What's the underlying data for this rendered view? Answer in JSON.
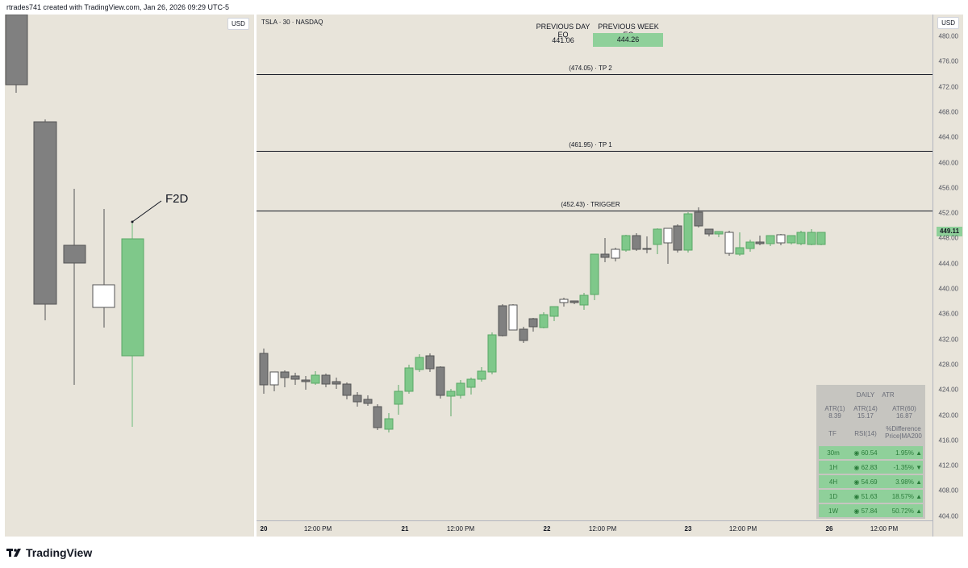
{
  "header": {
    "caption": "rtrades741 created with TradingView.com, Jan 26, 2026 09:29 UTC-5"
  },
  "left_chart": {
    "currency": "USD",
    "annotation": "F2D"
  },
  "right_chart": {
    "currency": "USD",
    "symbol_line": "TSLA · 30 · NASDAQ",
    "prev_day_eq_label": "PREVIOUS DAY EQ",
    "prev_day_eq_value": "441.06",
    "prev_week_eq_label": "PREVIOUS WEEK EQ",
    "prev_week_eq_value": "444.26",
    "levels": [
      {
        "label": "(474.05) · TP 2",
        "price": 474.05
      },
      {
        "label": "(461.95) · TP 1",
        "price": 461.95
      },
      {
        "label": "(452.43) · TRIGGER",
        "price": 452.43
      }
    ],
    "current_price": "449.11",
    "price_ticks": [
      "480.00",
      "476.00",
      "472.00",
      "468.00",
      "464.00",
      "460.00",
      "456.00",
      "452.00",
      "448.00",
      "444.00",
      "440.00",
      "436.00",
      "432.00",
      "428.00",
      "424.00",
      "420.00",
      "416.00",
      "412.00",
      "408.00",
      "404.00"
    ],
    "time_ticks": [
      {
        "label": "20",
        "bold": true
      },
      {
        "label": "12:00 PM",
        "bold": false
      },
      {
        "label": "21",
        "bold": true
      },
      {
        "label": "12:00 PM",
        "bold": false
      },
      {
        "label": "22",
        "bold": true
      },
      {
        "label": "12:00 PM",
        "bold": false
      },
      {
        "label": "23",
        "bold": true
      },
      {
        "label": "12:00 PM",
        "bold": false
      },
      {
        "label": "26",
        "bold": true
      },
      {
        "label": "12:00 PM",
        "bold": false
      }
    ],
    "table": {
      "title_daily": "DAILY",
      "title_atr": "ATR",
      "atr1_label": "ATR(1)",
      "atr1_value": "8.39",
      "atr14_label": "ATR(14)",
      "atr14_value": "15.17",
      "atr60_label": "ATR(60)",
      "atr60_value": "16.87",
      "col_tf": "TF",
      "col_rsi": "RSI(14)",
      "col_diff_1": "%Difference",
      "col_diff_2": "Price|MA200",
      "rows": [
        {
          "tf": "30m",
          "rsi": "◉ 60.54",
          "diff": "1.95% ▲"
        },
        {
          "tf": "1H",
          "rsi": "◉ 62.83",
          "diff": "-1.35% ▼"
        },
        {
          "tf": "4H",
          "rsi": "◉ 54.69",
          "diff": "3.98% ▲"
        },
        {
          "tf": "1D",
          "rsi": "◉ 51.63",
          "diff": "18.57% ▲"
        },
        {
          "tf": "1W",
          "rsi": "◉ 57.84",
          "diff": "50.72% ▲"
        }
      ]
    }
  },
  "footer": {
    "brand": "TradingView"
  },
  "colors": {
    "up": "#7fc88a",
    "down": "#808080",
    "hollow": "#ffffff",
    "panel_bg": "#e8e4da"
  }
}
